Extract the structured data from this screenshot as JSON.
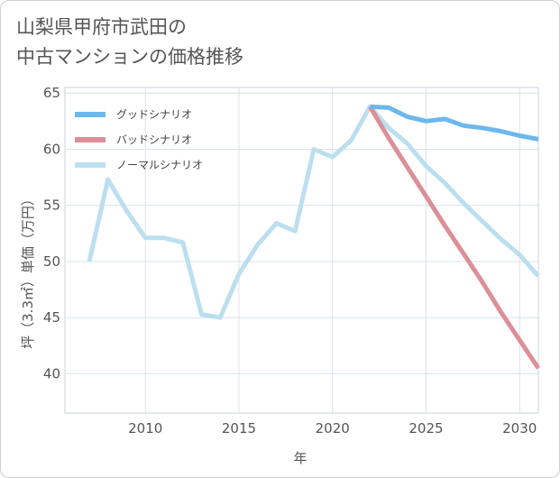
{
  "chart_data": {
    "type": "line",
    "title": "山梨県甲府市武田の\n中古マンションの価格推移",
    "xlabel": "年",
    "ylabel": "坪（3.3㎡）単価（万円）",
    "xlim": [
      2005.7,
      2031.0
    ],
    "ylim": [
      36.5,
      65.5
    ],
    "x_ticks": [
      2010,
      2015,
      2020,
      2025,
      2030
    ],
    "x_tick_labels": [
      "2010",
      "2015",
      "2020",
      "2025",
      "2030"
    ],
    "y_ticks": [
      40,
      45,
      50,
      55,
      60,
      65
    ],
    "y_tick_labels": [
      "40",
      "45",
      "50",
      "55",
      "60",
      "65"
    ],
    "grid": true,
    "legend_position": "top-left",
    "series": [
      {
        "name": "グッドシナリオ",
        "color": "#6cb8ec",
        "x": [
          2022,
          2023,
          2024,
          2025,
          2026,
          2027,
          2028,
          2029,
          2030,
          2031
        ],
        "y": [
          63.8,
          63.7,
          62.9,
          62.5,
          62.7,
          62.1,
          61.9,
          61.6,
          61.2,
          60.9
        ]
      },
      {
        "name": "バッドシナリオ",
        "color": "#dc8f97",
        "x": [
          2022,
          2023,
          2024,
          2025,
          2026,
          2027,
          2028,
          2029,
          2030,
          2031
        ],
        "y": [
          63.8,
          61.0,
          58.4,
          55.8,
          53.2,
          50.7,
          48.2,
          45.5,
          43.0,
          40.5
        ]
      },
      {
        "name": "ノーマルシナリオ",
        "color": "#bcdff0",
        "x": [
          2007,
          2008,
          2009,
          2010,
          2011,
          2012,
          2013,
          2014,
          2015,
          2016,
          2017,
          2018,
          2019,
          2020,
          2021,
          2022,
          2023,
          2024,
          2025,
          2026,
          2027,
          2028,
          2029,
          2030,
          2031
        ],
        "y": [
          50.0,
          57.3,
          54.5,
          52.1,
          52.1,
          51.7,
          45.3,
          45.0,
          48.9,
          51.5,
          53.4,
          52.7,
          60.0,
          59.3,
          60.8,
          63.8,
          61.9,
          60.5,
          58.5,
          57.0,
          55.2,
          53.6,
          52.0,
          50.6,
          48.7
        ]
      }
    ]
  }
}
